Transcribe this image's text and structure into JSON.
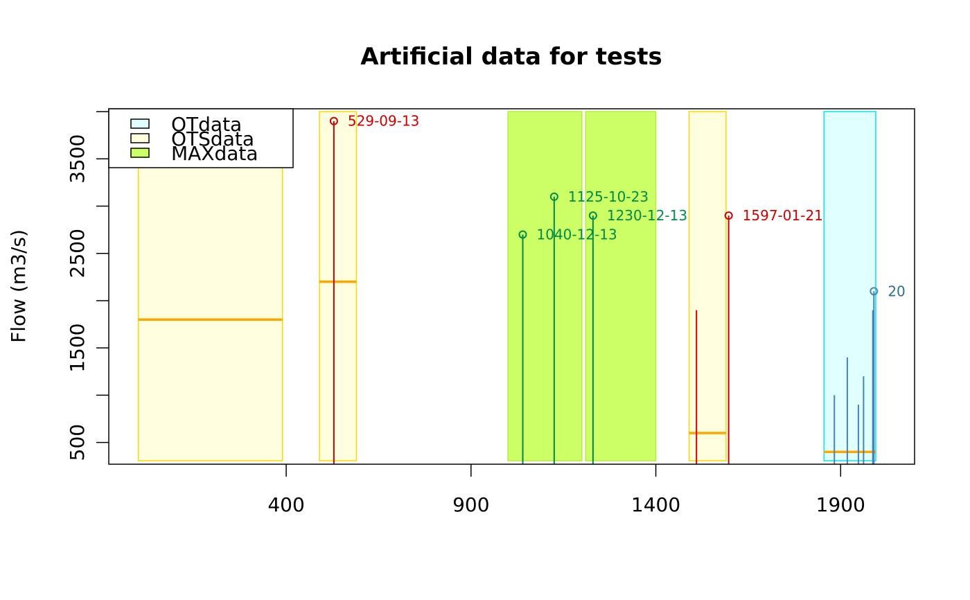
{
  "chart_data": {
    "type": "bar",
    "title": "Artificial data for tests",
    "xlabel": "",
    "ylabel": "Flow (m3/s)",
    "xlim": [
      -80,
      2100
    ],
    "ylim": [
      270,
      4030
    ],
    "x_ticks": [
      400,
      900,
      1400,
      1900
    ],
    "y_ticks": [
      500,
      1000,
      1500,
      2000,
      2500,
      3000,
      3500,
      4000
    ],
    "y_tick_labels": [
      {
        "value": 500,
        "label": "500"
      },
      {
        "value": 1500,
        "label": "1500"
      },
      {
        "value": 2500,
        "label": "2500"
      },
      {
        "value": 3500,
        "label": "3500"
      }
    ],
    "grid": false,
    "legend": {
      "placement": "top-left",
      "entries": [
        {
          "label": "OTdata",
          "fill": "#e0ffff",
          "stroke": "#00e5ee"
        },
        {
          "label": "OTSdata",
          "fill": "#ffffe0",
          "stroke": "#ffd700"
        },
        {
          "label": "MAXdata",
          "fill": "#ccff66",
          "stroke": "#b3ee3a"
        }
      ]
    },
    "colors": {
      "ots_fill": "#ffffe0",
      "ots_stroke": "#ffd700",
      "ot_fill": "#e0ffff",
      "ot_stroke": "#00e5ee",
      "max_fill": "#ccff66",
      "max_stroke": "#b3ee3a",
      "threshold": "#ffa500",
      "ots_flood": "#cd0000",
      "max_flood": "#008b45",
      "ot_flood": "#4682b4",
      "ot_label": "#2e6e8e"
    },
    "OTSdata_periods": [
      {
        "start": 0,
        "end": 390,
        "threshold": 1800
      },
      {
        "start": 490,
        "end": 590,
        "threshold": 2200
      },
      {
        "start": 1490,
        "end": 1590,
        "threshold": 600
      }
    ],
    "OTdata_periods": [
      {
        "start": 1855,
        "end": 1995,
        "threshold": 400
      }
    ],
    "MAXdata_periods": [
      {
        "start": 1000,
        "end": 1200
      },
      {
        "start": 1210,
        "end": 1400
      }
    ],
    "floods": [
      {
        "x": 529,
        "y": 3900,
        "label": "529-09-13",
        "series": "OTS"
      },
      {
        "x": 1040,
        "y": 2700,
        "label": "1040-12-13",
        "series": "MAX"
      },
      {
        "x": 1125,
        "y": 3100,
        "label": "1125-10-23",
        "series": "MAX"
      },
      {
        "x": 1230,
        "y": 2900,
        "label": "1230-12-13",
        "series": "MAX"
      },
      {
        "x": 1597,
        "y": 2900,
        "label": "1597-01-21",
        "series": "OTS"
      },
      {
        "x": 1510,
        "y": 1900,
        "label": "",
        "series": "OTS"
      },
      {
        "x": 1990,
        "y": 2100,
        "label": "20",
        "series": "OT"
      },
      {
        "x": 1883,
        "y": 1000,
        "label": "",
        "series": "OT"
      },
      {
        "x": 1918,
        "y": 1400,
        "label": "",
        "series": "OT"
      },
      {
        "x": 1948,
        "y": 900,
        "label": "",
        "series": "OT"
      },
      {
        "x": 1962,
        "y": 1200,
        "label": "",
        "series": "OT"
      },
      {
        "x": 1987,
        "y": 1900,
        "label": "",
        "series": "OT"
      }
    ]
  }
}
